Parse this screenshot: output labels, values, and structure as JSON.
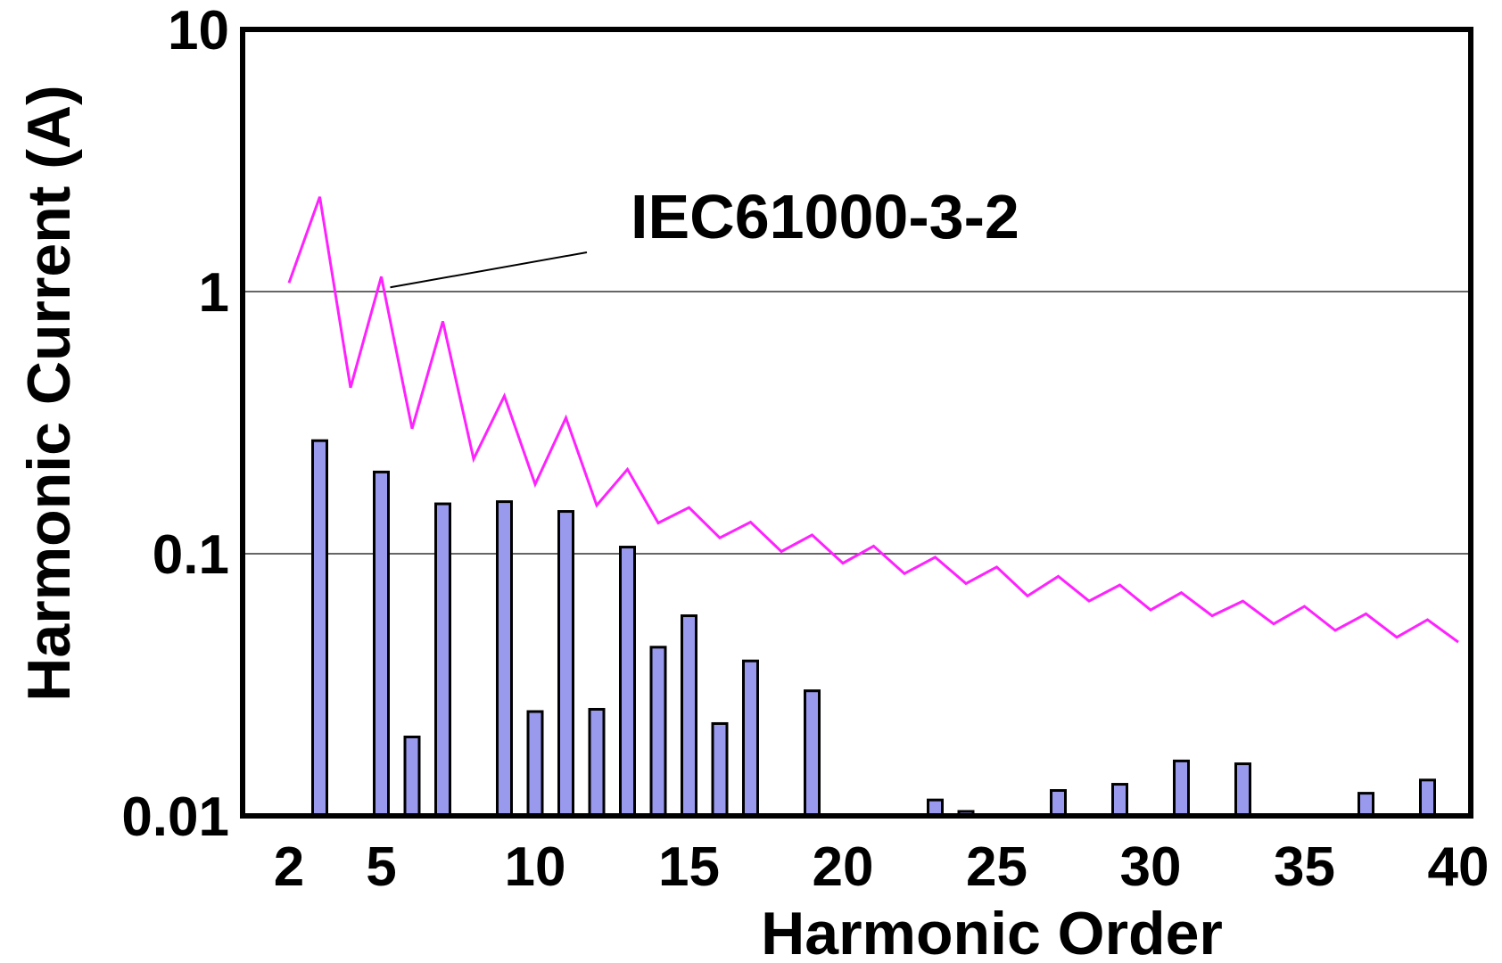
{
  "chart_data": {
    "type": "bar",
    "xlabel": "Harmonic Order",
    "ylabel": "Harmonic Current  (A)",
    "yscale": "log",
    "ylim": [
      0.01,
      10
    ],
    "xlim": [
      2,
      40
    ],
    "y_ticks": [
      "10",
      "1",
      "0.1",
      "0.01"
    ],
    "y_tick_values": [
      10,
      1,
      0.1,
      0.01
    ],
    "x_ticks": [
      "2",
      "5",
      "10",
      "15",
      "20",
      "25",
      "30",
      "35",
      "40"
    ],
    "x_tick_values": [
      2,
      5,
      10,
      15,
      20,
      25,
      30,
      35,
      40
    ],
    "grid": "horizontal at 0.1 and 1",
    "bar_color": "#9999ee",
    "line_color": "#ff22ff",
    "bars": [
      {
        "x": 3,
        "y": 0.27
      },
      {
        "x": 5,
        "y": 0.205
      },
      {
        "x": 6,
        "y": 0.02
      },
      {
        "x": 7,
        "y": 0.155
      },
      {
        "x": 9,
        "y": 0.158
      },
      {
        "x": 10,
        "y": 0.025
      },
      {
        "x": 11,
        "y": 0.145
      },
      {
        "x": 12,
        "y": 0.0255
      },
      {
        "x": 13,
        "y": 0.106
      },
      {
        "x": 14,
        "y": 0.044
      },
      {
        "x": 15,
        "y": 0.058
      },
      {
        "x": 16,
        "y": 0.0225
      },
      {
        "x": 17,
        "y": 0.039
      },
      {
        "x": 19,
        "y": 0.03
      },
      {
        "x": 23,
        "y": 0.0115
      },
      {
        "x": 24,
        "y": 0.0104
      },
      {
        "x": 27,
        "y": 0.0125
      },
      {
        "x": 29,
        "y": 0.0132
      },
      {
        "x": 31,
        "y": 0.0162
      },
      {
        "x": 33,
        "y": 0.0158
      },
      {
        "x": 37,
        "y": 0.0122
      },
      {
        "x": 39,
        "y": 0.0137
      }
    ],
    "limit_line": {
      "name": "IEC61000-3-2",
      "x": [
        2,
        3,
        4,
        5,
        6,
        7,
        8,
        9,
        10,
        11,
        12,
        13,
        14,
        15,
        16,
        17,
        18,
        19,
        20,
        21,
        22,
        23,
        24,
        25,
        26,
        27,
        28,
        29,
        30,
        31,
        32,
        33,
        34,
        35,
        36,
        37,
        38,
        39,
        40
      ],
      "y": [
        1.08,
        2.3,
        0.43,
        1.14,
        0.3,
        0.77,
        0.23,
        0.4,
        0.184,
        0.33,
        0.153,
        0.21,
        0.131,
        0.15,
        0.115,
        0.132,
        0.102,
        0.118,
        0.092,
        0.107,
        0.084,
        0.097,
        0.077,
        0.089,
        0.069,
        0.082,
        0.066,
        0.076,
        0.061,
        0.071,
        0.058,
        0.066,
        0.054,
        0.063,
        0.051,
        0.059,
        0.048,
        0.056,
        0.046
      ]
    },
    "annotation": "IEC61000-3-2"
  }
}
